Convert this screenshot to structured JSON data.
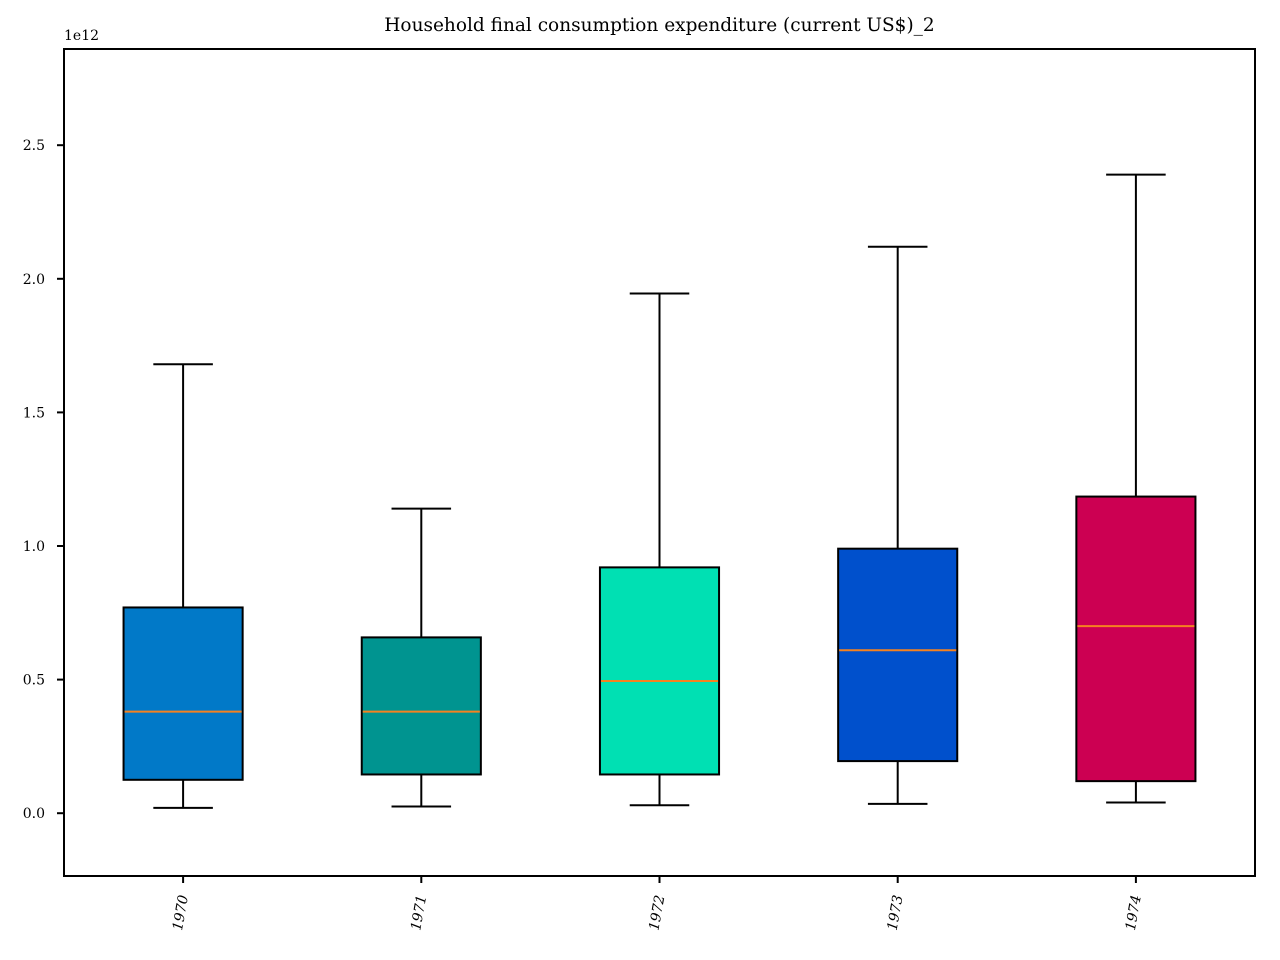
{
  "chart_data": {
    "type": "box",
    "title": "Household final consumption expenditure (current US$)_2",
    "xlabel": "",
    "ylabel": "",
    "y_scale_label": "1e12",
    "ylim": [
      -0.235,
      2.86
    ],
    "y_ticks": [
      0.0,
      0.5,
      1.0,
      1.5,
      2.0,
      2.5
    ],
    "y_tick_labels": [
      "0.0",
      "0.5",
      "1.0",
      "1.5",
      "2.0",
      "2.5"
    ],
    "grid": false,
    "median_color": "#f58220",
    "categories": [
      "1970",
      "1971",
      "1972",
      "1973",
      "1974"
    ],
    "boxes": [
      {
        "label": "1970",
        "whisker_low": 0.02,
        "q1": 0.125,
        "median": 0.38,
        "q3": 0.77,
        "whisker_high": 1.68,
        "color": "#0179c8"
      },
      {
        "label": "1971",
        "whisker_low": 0.025,
        "q1": 0.145,
        "median": 0.38,
        "q3": 0.658,
        "whisker_high": 1.14,
        "color": "#009490"
      },
      {
        "label": "1972",
        "whisker_low": 0.03,
        "q1": 0.145,
        "median": 0.495,
        "q3": 0.92,
        "whisker_high": 1.945,
        "color": "#00e0b3"
      },
      {
        "label": "1973",
        "whisker_low": 0.035,
        "q1": 0.195,
        "median": 0.61,
        "q3": 0.99,
        "whisker_high": 2.12,
        "color": "#0050cc"
      },
      {
        "label": "1974",
        "whisker_low": 0.04,
        "q1": 0.12,
        "median": 0.7,
        "q3": 1.185,
        "whisker_high": 2.39,
        "color": "#cc0052"
      }
    ]
  }
}
